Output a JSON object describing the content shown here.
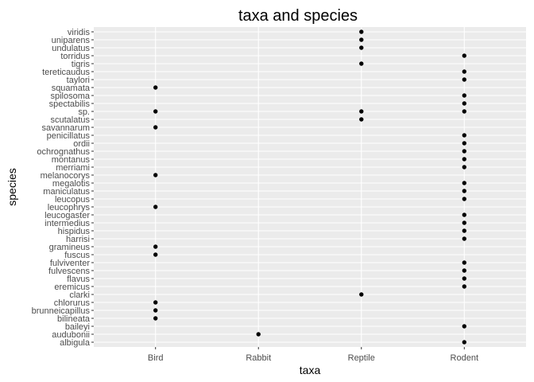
{
  "chart_data": {
    "type": "scatter",
    "title": "taxa and species",
    "xlabel": "taxa",
    "ylabel": "species",
    "x_categories": [
      "Bird",
      "Rabbit",
      "Reptile",
      "Rodent"
    ],
    "y_categories": [
      "albigula",
      "audubonii",
      "baileyi",
      "bilineata",
      "brunneicapillus",
      "chlorurus",
      "clarki",
      "eremicus",
      "flavus",
      "fulvescens",
      "fulviventer",
      "fuscus",
      "gramineus",
      "harrisi",
      "hispidus",
      "intermedius",
      "leucogaster",
      "leucophrys",
      "leucopus",
      "maniculatus",
      "megalotis",
      "melanocorys",
      "merriami",
      "montanus",
      "ochrognathus",
      "ordii",
      "penicillatus",
      "savannarum",
      "scutalatus",
      "sp.",
      "spectabilis",
      "spilosoma",
      "squamata",
      "taylori",
      "tereticaudus",
      "tigris",
      "torridus",
      "undulatus",
      "uniparens",
      "viridis"
    ],
    "points": [
      {
        "x": "Rodent",
        "y": "albigula"
      },
      {
        "x": "Rabbit",
        "y": "audubonii"
      },
      {
        "x": "Rodent",
        "y": "baileyi"
      },
      {
        "x": "Bird",
        "y": "bilineata"
      },
      {
        "x": "Bird",
        "y": "brunneicapillus"
      },
      {
        "x": "Bird",
        "y": "chlorurus"
      },
      {
        "x": "Reptile",
        "y": "clarki"
      },
      {
        "x": "Rodent",
        "y": "eremicus"
      },
      {
        "x": "Rodent",
        "y": "flavus"
      },
      {
        "x": "Rodent",
        "y": "fulvescens"
      },
      {
        "x": "Rodent",
        "y": "fulviventer"
      },
      {
        "x": "Bird",
        "y": "fuscus"
      },
      {
        "x": "Bird",
        "y": "gramineus"
      },
      {
        "x": "Rodent",
        "y": "harrisi"
      },
      {
        "x": "Rodent",
        "y": "hispidus"
      },
      {
        "x": "Rodent",
        "y": "intermedius"
      },
      {
        "x": "Rodent",
        "y": "leucogaster"
      },
      {
        "x": "Bird",
        "y": "leucophrys"
      },
      {
        "x": "Rodent",
        "y": "leucopus"
      },
      {
        "x": "Rodent",
        "y": "maniculatus"
      },
      {
        "x": "Rodent",
        "y": "megalotis"
      },
      {
        "x": "Bird",
        "y": "melanocorys"
      },
      {
        "x": "Rodent",
        "y": "merriami"
      },
      {
        "x": "Rodent",
        "y": "montanus"
      },
      {
        "x": "Rodent",
        "y": "ochrognathus"
      },
      {
        "x": "Rodent",
        "y": "ordii"
      },
      {
        "x": "Rodent",
        "y": "penicillatus"
      },
      {
        "x": "Bird",
        "y": "savannarum"
      },
      {
        "x": "Reptile",
        "y": "scutalatus"
      },
      {
        "x": "Bird",
        "y": "sp."
      },
      {
        "x": "Reptile",
        "y": "sp."
      },
      {
        "x": "Rodent",
        "y": "sp."
      },
      {
        "x": "Rodent",
        "y": "spectabilis"
      },
      {
        "x": "Rodent",
        "y": "spilosoma"
      },
      {
        "x": "Bird",
        "y": "squamata"
      },
      {
        "x": "Rodent",
        "y": "taylori"
      },
      {
        "x": "Rodent",
        "y": "tereticaudus"
      },
      {
        "x": "Reptile",
        "y": "tigris"
      },
      {
        "x": "Rodent",
        "y": "torridus"
      },
      {
        "x": "Reptile",
        "y": "undulatus"
      },
      {
        "x": "Reptile",
        "y": "uniparens"
      },
      {
        "x": "Reptile",
        "y": "viridis"
      }
    ],
    "grid": true,
    "legend": "none",
    "colors": {
      "panel": "#ebebeb",
      "point": "#000000"
    }
  }
}
